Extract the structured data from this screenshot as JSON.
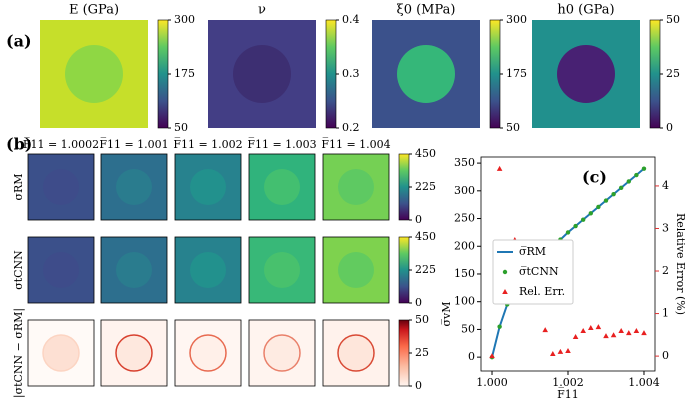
{
  "panel_labels": [
    "(a)",
    "(b)"
  ],
  "chart_data": [
    {
      "type": "image_row",
      "images": [
        {
          "title": "E (GPa)",
          "clim": [
            50,
            300
          ],
          "cticks": [
            50,
            175,
            300
          ],
          "colormap": "viridis",
          "background_color": "#c6df2a",
          "inclusion_color": "#8fd744"
        },
        {
          "title": "ν",
          "clim": [
            0.2,
            0.4
          ],
          "cticks": [
            0.2,
            0.3,
            0.4
          ],
          "colormap": "viridis",
          "background_color": "#433e85",
          "inclusion_color": "#3d2f72"
        },
        {
          "title": "ξ0 (MPa)",
          "clim": [
            50,
            300
          ],
          "cticks": [
            50,
            175,
            300
          ],
          "colormap": "viridis",
          "background_color": "#3b518b",
          "inclusion_color": "#35b779"
        },
        {
          "title": "h0 (GPa)",
          "clim": [
            0,
            50
          ],
          "cticks": [
            0,
            25,
            50
          ],
          "colormap": "viridis",
          "background_color": "#21908d",
          "inclusion_color": "#482173"
        }
      ]
    },
    {
      "type": "image_grid",
      "columns": [
        "F̅11 = 1.0002",
        "F̅11 = 1.001",
        "F̅11 = 1.002",
        "F̅11 = 1.003",
        "F̅11 = 1.004"
      ],
      "rows": [
        {
          "label": "σRM",
          "clim": [
            0,
            450
          ],
          "cticks": [
            0,
            225,
            450
          ],
          "colormap": "viridis"
        },
        {
          "label": "σtCNN",
          "clim": [
            0,
            450
          ],
          "cticks": [
            0,
            225,
            450
          ],
          "colormap": "viridis"
        },
        {
          "label": "|σtCNN − σRM|",
          "clim": [
            0,
            50
          ],
          "cticks": [
            0,
            25,
            50
          ],
          "colormap": "reds"
        }
      ]
    },
    {
      "type": "line",
      "annotation": "(c)",
      "xlabel": "F̅11",
      "ylabel": "σ̅vM",
      "y2label": "Relative Error (%)",
      "x": [
        1.0,
        1.0002,
        1.0004,
        1.0006,
        1.0008,
        1.001,
        1.0012,
        1.0014,
        1.0016,
        1.0018,
        1.002,
        1.0022,
        1.0024,
        1.0026,
        1.0028,
        1.003,
        1.0032,
        1.0034,
        1.0036,
        1.0038,
        1.004
      ],
      "xlim": [
        0.99971,
        1.00429
      ],
      "xticks": [
        {
          "value": 1.0,
          "label": "1.000"
        },
        {
          "value": 1.002,
          "label": "1.002"
        },
        {
          "value": 1.004,
          "label": "1.004"
        }
      ],
      "ylim": [
        -25,
        361
      ],
      "yticks": [
        0,
        50,
        100,
        150,
        200,
        250,
        300,
        350
      ],
      "y2lim": [
        -0.35,
        4.68
      ],
      "y2ticks": [
        0,
        1,
        2,
        3,
        4
      ],
      "y2color": "#e03030",
      "legend": "center",
      "series": [
        {
          "name": "σ̅RM",
          "color": "#1f77b4",
          "kind": "line",
          "values": [
            0,
            55,
            95,
            120,
            140,
            158,
            172,
            185,
            199,
            212,
            225,
            236.5,
            248,
            259.5,
            271,
            282.5,
            294,
            305.5,
            317,
            328.5,
            340
          ]
        },
        {
          "name": "σ̅tCNN",
          "color": "#2ca02c",
          "kind": "dot",
          "values": [
            0,
            55,
            95,
            120,
            140,
            158,
            172,
            185,
            199,
            212,
            225,
            236.5,
            248,
            259.5,
            271,
            282.5,
            294,
            305.5,
            317,
            328.5,
            340
          ]
        },
        {
          "name": "Rel. Err.",
          "color": "#e82020",
          "kind": "triangle",
          "axis": "y2",
          "values": [
            0,
            4.4,
            2.38,
            2.73,
            2.19,
            1.62,
            1.41,
            0.61,
            0.05,
            0.1,
            0.12,
            0.45,
            0.59,
            0.66,
            0.68,
            0.47,
            0.49,
            0.59,
            0.54,
            0.59,
            0.54
          ]
        }
      ]
    }
  ]
}
